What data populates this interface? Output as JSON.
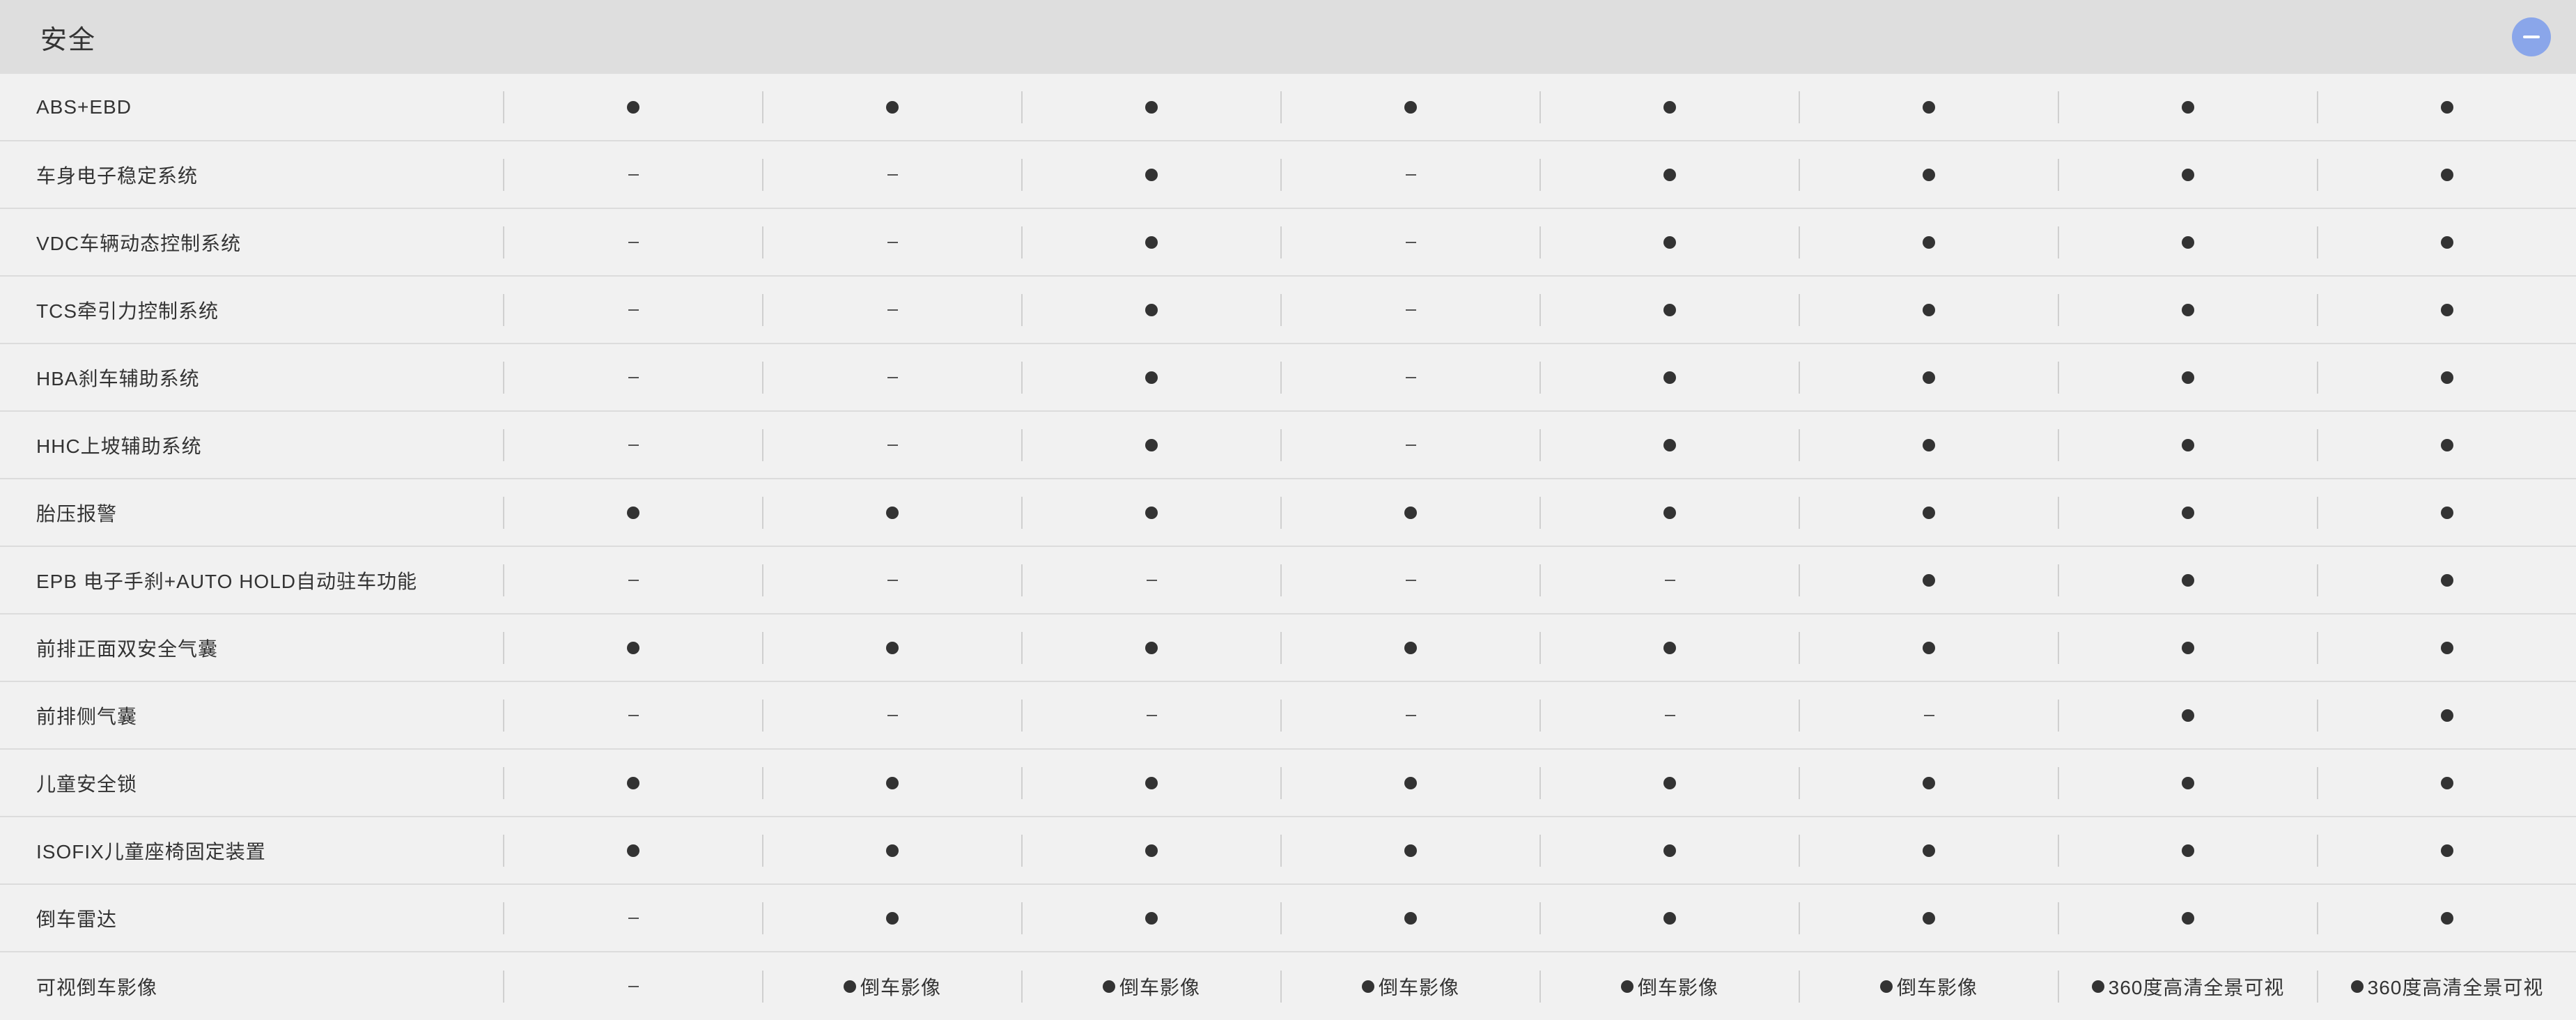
{
  "section": {
    "title": "安全",
    "collapse_icon": "minus-circle-icon",
    "accent_color": "#8aa6ea"
  },
  "symbols": {
    "standard": "●",
    "not_available": "–"
  },
  "rows": [
    {
      "label": "ABS+EBD",
      "values": [
        {
          "type": "dot"
        },
        {
          "type": "dot"
        },
        {
          "type": "dot"
        },
        {
          "type": "dot"
        },
        {
          "type": "dot"
        },
        {
          "type": "dot"
        },
        {
          "type": "dot"
        },
        {
          "type": "dot"
        }
      ]
    },
    {
      "label": "车身电子稳定系统",
      "values": [
        {
          "type": "dash"
        },
        {
          "type": "dash"
        },
        {
          "type": "dot"
        },
        {
          "type": "dash"
        },
        {
          "type": "dot"
        },
        {
          "type": "dot"
        },
        {
          "type": "dot"
        },
        {
          "type": "dot"
        }
      ]
    },
    {
      "label": "VDC车辆动态控制系统",
      "values": [
        {
          "type": "dash"
        },
        {
          "type": "dash"
        },
        {
          "type": "dot"
        },
        {
          "type": "dash"
        },
        {
          "type": "dot"
        },
        {
          "type": "dot"
        },
        {
          "type": "dot"
        },
        {
          "type": "dot"
        }
      ]
    },
    {
      "label": "TCS牵引力控制系统",
      "values": [
        {
          "type": "dash"
        },
        {
          "type": "dash"
        },
        {
          "type": "dot"
        },
        {
          "type": "dash"
        },
        {
          "type": "dot"
        },
        {
          "type": "dot"
        },
        {
          "type": "dot"
        },
        {
          "type": "dot"
        }
      ]
    },
    {
      "label": "HBA刹车辅助系统",
      "values": [
        {
          "type": "dash"
        },
        {
          "type": "dash"
        },
        {
          "type": "dot"
        },
        {
          "type": "dash"
        },
        {
          "type": "dot"
        },
        {
          "type": "dot"
        },
        {
          "type": "dot"
        },
        {
          "type": "dot"
        }
      ]
    },
    {
      "label": "HHC上坡辅助系统",
      "values": [
        {
          "type": "dash"
        },
        {
          "type": "dash"
        },
        {
          "type": "dot"
        },
        {
          "type": "dash"
        },
        {
          "type": "dot"
        },
        {
          "type": "dot"
        },
        {
          "type": "dot"
        },
        {
          "type": "dot"
        }
      ]
    },
    {
      "label": "胎压报警",
      "values": [
        {
          "type": "dot"
        },
        {
          "type": "dot"
        },
        {
          "type": "dot"
        },
        {
          "type": "dot"
        },
        {
          "type": "dot"
        },
        {
          "type": "dot"
        },
        {
          "type": "dot"
        },
        {
          "type": "dot"
        }
      ]
    },
    {
      "label": "EPB 电子手刹+AUTO HOLD自动驻车功能",
      "values": [
        {
          "type": "dash"
        },
        {
          "type": "dash"
        },
        {
          "type": "dash"
        },
        {
          "type": "dash"
        },
        {
          "type": "dash"
        },
        {
          "type": "dot"
        },
        {
          "type": "dot"
        },
        {
          "type": "dot"
        }
      ]
    },
    {
      "label": "前排正面双安全气囊",
      "values": [
        {
          "type": "dot"
        },
        {
          "type": "dot"
        },
        {
          "type": "dot"
        },
        {
          "type": "dot"
        },
        {
          "type": "dot"
        },
        {
          "type": "dot"
        },
        {
          "type": "dot"
        },
        {
          "type": "dot"
        }
      ]
    },
    {
      "label": "前排侧气囊",
      "values": [
        {
          "type": "dash"
        },
        {
          "type": "dash"
        },
        {
          "type": "dash"
        },
        {
          "type": "dash"
        },
        {
          "type": "dash"
        },
        {
          "type": "dash"
        },
        {
          "type": "dot"
        },
        {
          "type": "dot"
        }
      ]
    },
    {
      "label": "儿童安全锁",
      "values": [
        {
          "type": "dot"
        },
        {
          "type": "dot"
        },
        {
          "type": "dot"
        },
        {
          "type": "dot"
        },
        {
          "type": "dot"
        },
        {
          "type": "dot"
        },
        {
          "type": "dot"
        },
        {
          "type": "dot"
        }
      ]
    },
    {
      "label": "ISOFIX儿童座椅固定装置",
      "values": [
        {
          "type": "dot"
        },
        {
          "type": "dot"
        },
        {
          "type": "dot"
        },
        {
          "type": "dot"
        },
        {
          "type": "dot"
        },
        {
          "type": "dot"
        },
        {
          "type": "dot"
        },
        {
          "type": "dot"
        }
      ]
    },
    {
      "label": "倒车雷达",
      "values": [
        {
          "type": "dash"
        },
        {
          "type": "dot"
        },
        {
          "type": "dot"
        },
        {
          "type": "dot"
        },
        {
          "type": "dot"
        },
        {
          "type": "dot"
        },
        {
          "type": "dot"
        },
        {
          "type": "dot"
        }
      ]
    },
    {
      "label": "可视倒车影像",
      "values": [
        {
          "type": "dash"
        },
        {
          "type": "dot",
          "text": "倒车影像"
        },
        {
          "type": "dot",
          "text": "倒车影像"
        },
        {
          "type": "dot",
          "text": "倒车影像"
        },
        {
          "type": "dot",
          "text": "倒车影像"
        },
        {
          "type": "dot",
          "text": "倒车影像"
        },
        {
          "type": "dot",
          "text": "360度高清全景可视"
        },
        {
          "type": "dot",
          "text": "360度高清全景可视"
        }
      ]
    }
  ]
}
